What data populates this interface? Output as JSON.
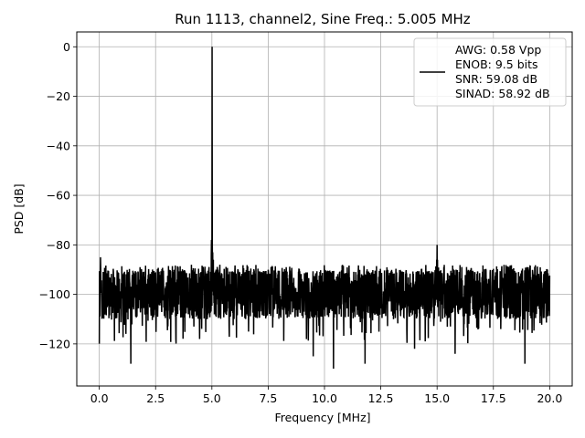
{
  "chart_data": {
    "type": "line",
    "title": "Run 1113, channel2, Sine Freq.: 5.005 MHz",
    "xlabel": "Frequency [MHz]",
    "ylabel": "PSD [dB]",
    "xlim": [
      -1.0,
      21.0
    ],
    "ylim": [
      -137,
      6
    ],
    "xticks": [
      0.0,
      2.5,
      5.0,
      7.5,
      10.0,
      12.5,
      15.0,
      17.5,
      20.0
    ],
    "xtick_labels": [
      "0.0",
      "2.5",
      "5.0",
      "7.5",
      "10.0",
      "12.5",
      "15.0",
      "17.5",
      "20.0"
    ],
    "yticks": [
      0,
      -20,
      -40,
      -60,
      -80,
      -100,
      -120
    ],
    "ytick_labels": [
      "0",
      "−20",
      "−40",
      "−60",
      "−80",
      "−100",
      "−120"
    ],
    "grid": true,
    "legend_position": "top-right",
    "legend_lines": [
      "AWG: 0.58 Vpp",
      "ENOB: 9.5 bits",
      "SNR: 59.08 dB",
      "SINAD: 58.92 dB"
    ],
    "line_color": "#000000",
    "noise_floor": {
      "x_range": [
        0.0,
        20.0
      ],
      "typical_range": [
        -110,
        -90
      ],
      "upper_envelope": -88
    },
    "peaks": [
      {
        "x": 5.005,
        "y": 0
      },
      {
        "x": 4.98,
        "y": -78
      },
      {
        "x": 15.0,
        "y": -80
      },
      {
        "x": 0.05,
        "y": -85
      }
    ],
    "dips": [
      {
        "x": 1.4,
        "y": -128
      },
      {
        "x": 3.4,
        "y": -118
      },
      {
        "x": 9.5,
        "y": -125
      },
      {
        "x": 10.4,
        "y": -130
      },
      {
        "x": 11.8,
        "y": -128
      },
      {
        "x": 14.0,
        "y": -122
      },
      {
        "x": 15.8,
        "y": -124
      },
      {
        "x": 18.9,
        "y": -128
      }
    ]
  }
}
